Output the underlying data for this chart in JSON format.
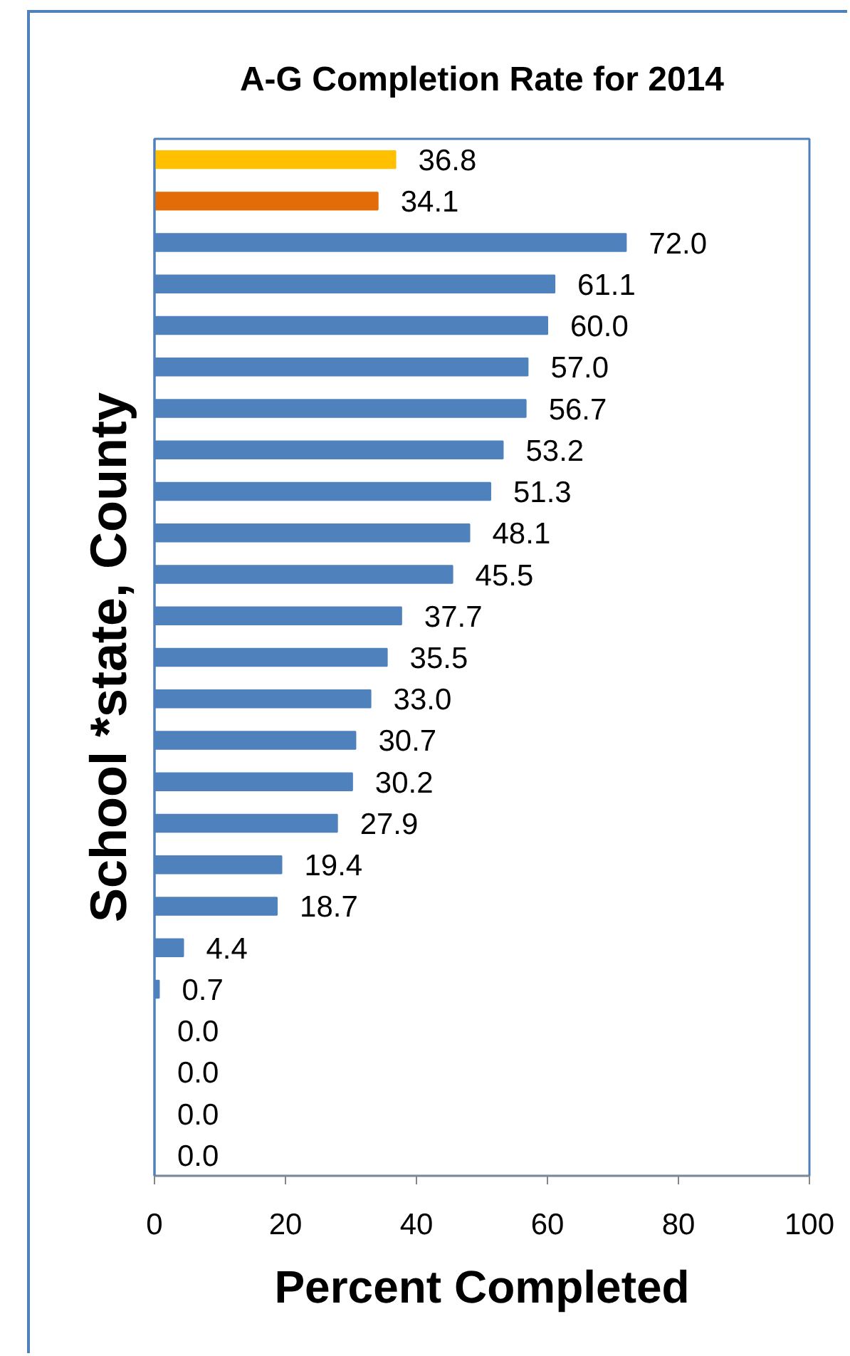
{
  "chart_data": {
    "type": "bar",
    "orientation": "horizontal",
    "title": "A-G Completion Rate for 2014",
    "xlabel": "Percent Completed",
    "ylabel": "School *state, County",
    "categories": [
      null,
      null,
      null,
      null,
      null,
      null,
      null,
      null,
      null,
      null,
      null,
      null,
      null,
      null,
      null,
      null,
      null,
      null,
      null,
      null,
      null,
      null,
      null,
      null,
      null
    ],
    "values": [
      36.8,
      34.1,
      72.0,
      61.1,
      60.0,
      57.0,
      56.7,
      53.2,
      51.3,
      48.1,
      45.5,
      37.7,
      35.5,
      33.0,
      30.7,
      30.2,
      27.9,
      19.4,
      18.7,
      4.4,
      0.7,
      0.0,
      0.0,
      0.0,
      0.0
    ],
    "colors": [
      "#ffc000",
      "#e36c09",
      "#4f81bd",
      "#4f81bd",
      "#4f81bd",
      "#4f81bd",
      "#4f81bd",
      "#4f81bd",
      "#4f81bd",
      "#4f81bd",
      "#4f81bd",
      "#4f81bd",
      "#4f81bd",
      "#4f81bd",
      "#4f81bd",
      "#4f81bd",
      "#4f81bd",
      "#4f81bd",
      "#4f81bd",
      "#4f81bd",
      "#4f81bd",
      "#4f81bd",
      "#4f81bd",
      "#4f81bd",
      "#4f81bd"
    ],
    "value_labels": [
      "36.8",
      "34.1",
      "72.0",
      "61.1",
      "60.0",
      "57.0",
      "56.7",
      "53.2",
      "51.3",
      "48.1",
      "45.5",
      "37.7",
      "35.5",
      "33.0",
      "30.7",
      "30.2",
      "27.9",
      "19.4",
      "18.7",
      "4.4",
      "0.7",
      "0.0",
      "0.0",
      "0.0",
      "0.0"
    ],
    "xlim": [
      0,
      100
    ],
    "xticks": [
      0,
      20,
      40,
      60,
      80,
      100
    ]
  }
}
